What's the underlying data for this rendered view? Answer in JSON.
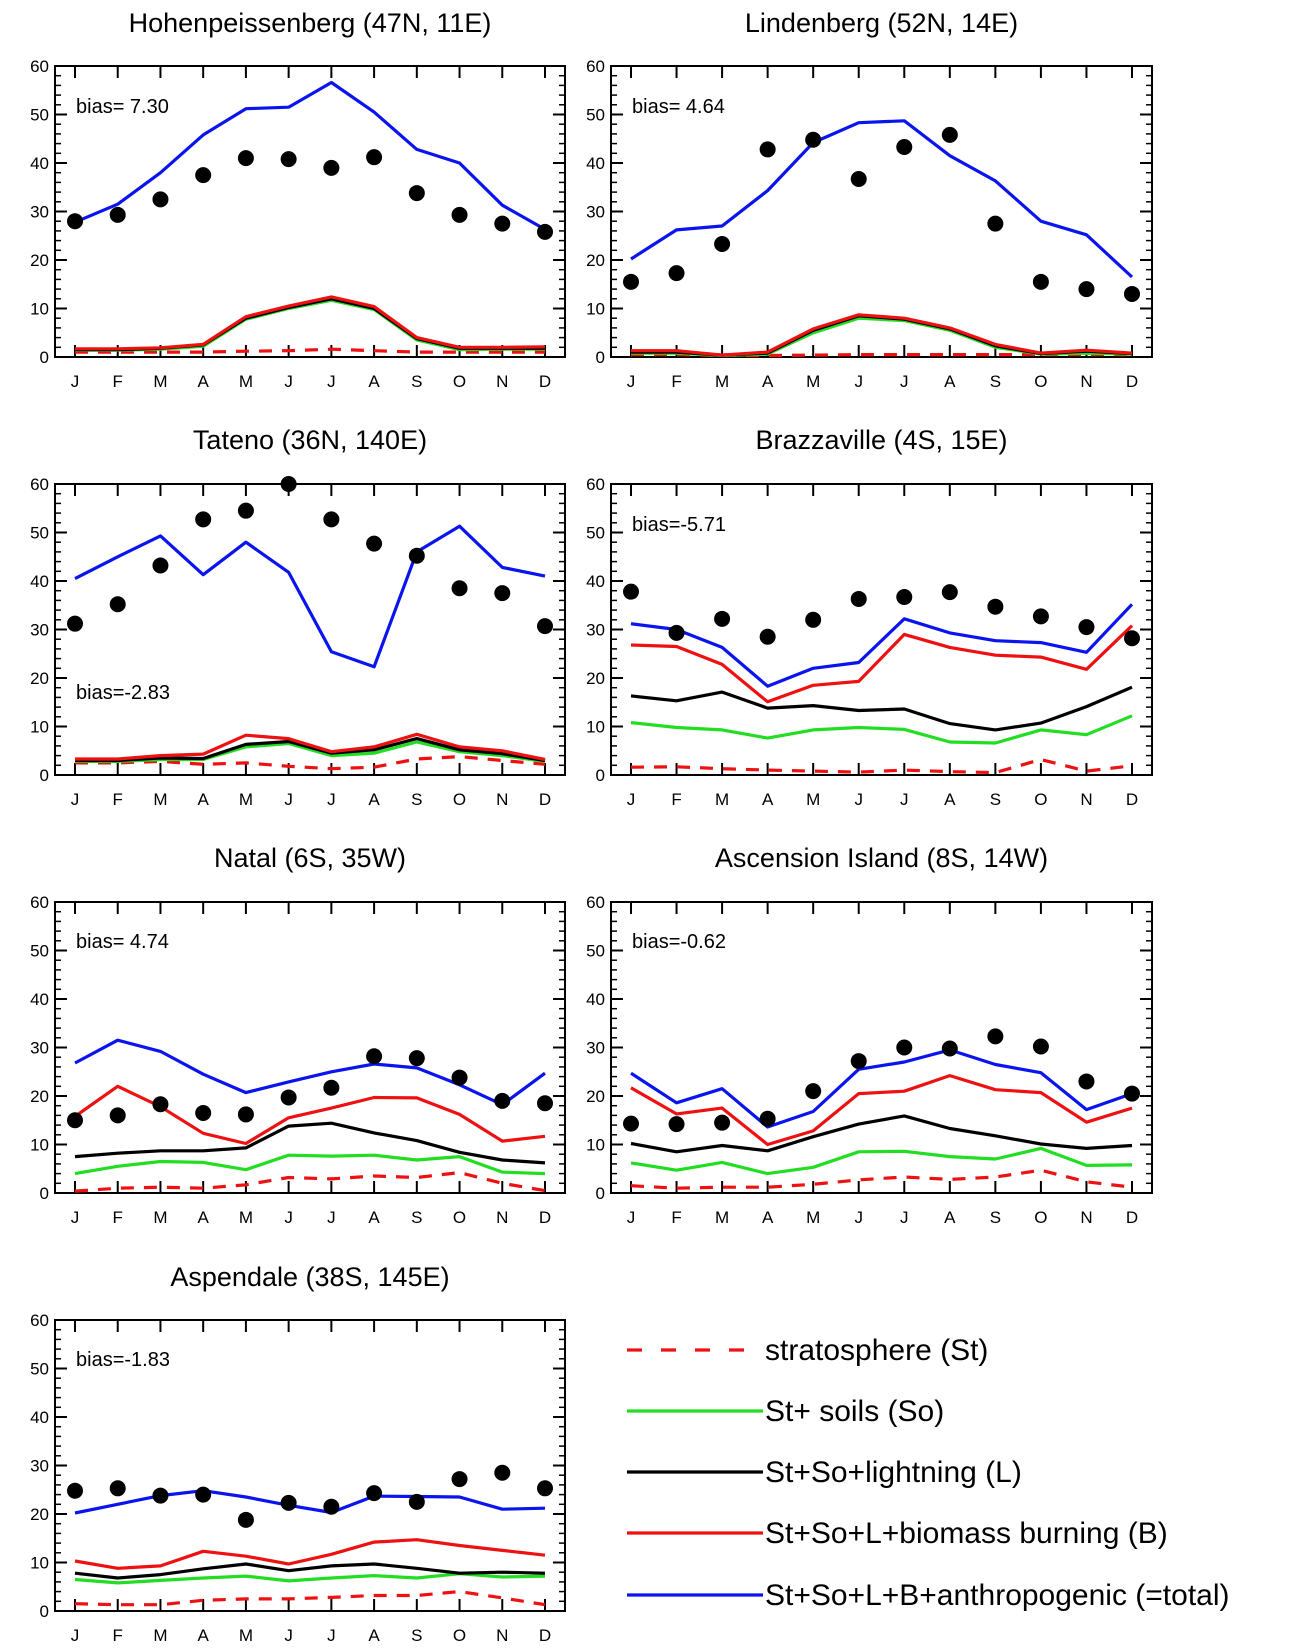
{
  "months": [
    "J",
    "F",
    "M",
    "A",
    "M",
    "J",
    "J",
    "A",
    "S",
    "O",
    "N",
    "D"
  ],
  "yticks": [
    0,
    10,
    20,
    30,
    40,
    50,
    60
  ],
  "colors": {
    "st": "#ee1111",
    "so": "#22dd22",
    "l": "#000000",
    "b": "#ee1111",
    "total": "#0a14ee",
    "obs": "#000000"
  },
  "legend": [
    {
      "key": "st",
      "label": "stratosphere (St)",
      "dashed": true
    },
    {
      "key": "so",
      "label": "St+ soils (So)",
      "dashed": false
    },
    {
      "key": "l",
      "label": "St+So+lightning (L)",
      "dashed": false
    },
    {
      "key": "b",
      "label": "St+So+L+biomass burning (B)",
      "dashed": false
    },
    {
      "key": "total",
      "label": "St+So+L+B+anthropogenic (=total)",
      "dashed": false
    }
  ],
  "chart_data": [
    {
      "type": "line",
      "title": "Hohenpeissenberg (47N, 11E)",
      "bias": "bias= 7.30",
      "ylim": [
        0,
        60
      ],
      "categories": [
        "J",
        "F",
        "M",
        "A",
        "M",
        "J",
        "J",
        "A",
        "S",
        "O",
        "N",
        "D"
      ],
      "observations": [
        28.0,
        29.3,
        32.5,
        37.5,
        41.0,
        40.8,
        39.0,
        41.2,
        33.8,
        29.3,
        27.5,
        25.8
      ],
      "series": [
        {
          "key": "st",
          "values": [
            1.0,
            1.0,
            1.0,
            1.0,
            1.2,
            1.3,
            1.6,
            1.3,
            1.0,
            1.0,
            1.0,
            1.0
          ]
        },
        {
          "key": "so",
          "values": [
            1.4,
            1.4,
            1.6,
            2.2,
            7.8,
            10.0,
            11.7,
            9.8,
            3.5,
            1.5,
            1.6,
            1.6
          ]
        },
        {
          "key": "l",
          "values": [
            1.5,
            1.5,
            1.8,
            2.5,
            8.0,
            10.2,
            12.0,
            10.0,
            3.8,
            1.8,
            1.8,
            1.8
          ]
        },
        {
          "key": "b",
          "values": [
            1.7,
            1.7,
            1.9,
            2.6,
            8.3,
            10.5,
            12.4,
            10.4,
            4.0,
            2.0,
            2.0,
            2.1
          ]
        },
        {
          "key": "total",
          "values": [
            27.8,
            31.5,
            38.0,
            45.8,
            51.2,
            51.5,
            56.6,
            50.5,
            42.8,
            40.0,
            31.3,
            26.3
          ]
        }
      ]
    },
    {
      "type": "line",
      "title": "Lindenberg (52N, 14E)",
      "bias": "bias= 4.64",
      "ylim": [
        0,
        60
      ],
      "categories": [
        "J",
        "F",
        "M",
        "A",
        "M",
        "J",
        "J",
        "A",
        "S",
        "O",
        "N",
        "D"
      ],
      "observations": [
        15.5,
        17.3,
        23.3,
        42.8,
        44.8,
        36.7,
        43.3,
        45.8,
        27.5,
        15.5,
        14.0,
        13.0
      ],
      "series": [
        {
          "key": "st",
          "values": [
            0.5,
            0.5,
            0.3,
            0.3,
            0.4,
            0.5,
            0.5,
            0.5,
            0.5,
            0.5,
            0.5,
            0.5
          ]
        },
        {
          "key": "so",
          "values": [
            0.8,
            0.8,
            0.3,
            0.6,
            5.0,
            8.0,
            7.5,
            5.5,
            2.0,
            0.6,
            0.8,
            0.6
          ]
        },
        {
          "key": "l",
          "values": [
            1.0,
            1.0,
            0.4,
            0.8,
            5.5,
            8.5,
            7.8,
            5.8,
            2.3,
            0.7,
            1.2,
            0.7
          ]
        },
        {
          "key": "b",
          "values": [
            1.3,
            1.3,
            0.4,
            1.0,
            5.8,
            8.7,
            8.0,
            6.0,
            2.6,
            0.8,
            1.4,
            0.8
          ]
        },
        {
          "key": "total",
          "values": [
            20.2,
            26.2,
            27.0,
            34.3,
            44.2,
            48.3,
            48.7,
            41.5,
            36.3,
            28.0,
            25.2,
            16.5
          ]
        }
      ]
    },
    {
      "type": "line",
      "title": "Tateno (36N, 140E)",
      "bias": "bias=-2.83",
      "ylim": [
        0,
        60
      ],
      "categories": [
        "J",
        "F",
        "M",
        "A",
        "M",
        "J",
        "J",
        "A",
        "S",
        "O",
        "N",
        "D"
      ],
      "observations": [
        31.2,
        35.2,
        43.2,
        52.7,
        54.5,
        60.0,
        52.7,
        47.7,
        45.2,
        38.5,
        37.5,
        30.7
      ],
      "series": [
        {
          "key": "st",
          "values": [
            2.5,
            2.5,
            2.8,
            2.2,
            2.5,
            1.8,
            1.3,
            1.6,
            3.3,
            3.8,
            3.0,
            2.2
          ]
        },
        {
          "key": "so",
          "values": [
            2.8,
            2.8,
            3.2,
            3.2,
            5.8,
            6.5,
            4.0,
            4.5,
            6.8,
            4.8,
            4.0,
            2.8
          ]
        },
        {
          "key": "l",
          "values": [
            3.0,
            3.0,
            3.5,
            3.4,
            6.3,
            6.9,
            4.5,
            5.2,
            7.5,
            5.2,
            4.4,
            3.0
          ]
        },
        {
          "key": "b",
          "values": [
            3.3,
            3.3,
            4.0,
            4.3,
            8.2,
            7.5,
            4.8,
            5.8,
            8.4,
            5.8,
            5.0,
            3.2
          ]
        },
        {
          "key": "total",
          "values": [
            40.5,
            45.0,
            49.3,
            41.3,
            48.0,
            41.8,
            25.4,
            22.3,
            46.0,
            51.3,
            42.8,
            41.0
          ]
        }
      ]
    },
    {
      "type": "line",
      "title": "Brazzaville (4S, 15E)",
      "bias": "bias=-5.71",
      "ylim": [
        0,
        60
      ],
      "categories": [
        "J",
        "F",
        "M",
        "A",
        "M",
        "J",
        "J",
        "A",
        "S",
        "O",
        "N",
        "D"
      ],
      "observations": [
        37.8,
        29.3,
        32.2,
        28.5,
        32.0,
        36.3,
        36.7,
        37.7,
        34.7,
        32.7,
        30.5,
        28.2
      ],
      "series": [
        {
          "key": "st",
          "values": [
            1.6,
            1.7,
            1.3,
            1.0,
            0.8,
            0.6,
            1.0,
            0.7,
            0.5,
            3.2,
            0.8,
            1.9
          ]
        },
        {
          "key": "so",
          "values": [
            10.8,
            9.8,
            9.3,
            7.6,
            9.3,
            9.8,
            9.4,
            6.8,
            6.6,
            9.3,
            8.3,
            12.2
          ]
        },
        {
          "key": "l",
          "values": [
            16.3,
            15.3,
            17.1,
            13.8,
            14.3,
            13.3,
            13.6,
            10.6,
            9.3,
            10.7,
            14.1,
            18.1
          ]
        },
        {
          "key": "b",
          "values": [
            26.8,
            26.5,
            22.8,
            15.1,
            18.5,
            19.3,
            29.0,
            26.3,
            24.7,
            24.3,
            21.8,
            30.8
          ]
        },
        {
          "key": "total",
          "values": [
            31.2,
            30.0,
            26.3,
            18.3,
            22.0,
            23.2,
            32.2,
            29.3,
            27.7,
            27.3,
            25.3,
            35.2
          ]
        }
      ]
    },
    {
      "type": "line",
      "title": "Natal (6S, 35W)",
      "bias": "bias= 4.74",
      "ylim": [
        0,
        60
      ],
      "categories": [
        "J",
        "F",
        "M",
        "A",
        "M",
        "J",
        "J",
        "A",
        "S",
        "O",
        "N",
        "D"
      ],
      "observations": [
        15.0,
        16.0,
        18.3,
        16.5,
        16.2,
        19.7,
        21.7,
        28.2,
        27.8,
        23.8,
        19.0,
        18.5
      ],
      "series": [
        {
          "key": "st",
          "values": [
            0.4,
            1.0,
            1.2,
            1.0,
            1.7,
            3.2,
            2.9,
            3.5,
            3.2,
            4.2,
            2.0,
            0.5
          ]
        },
        {
          "key": "so",
          "values": [
            4.0,
            5.5,
            6.5,
            6.3,
            4.8,
            7.8,
            7.6,
            7.8,
            6.8,
            7.5,
            4.3,
            4.0
          ]
        },
        {
          "key": "l",
          "values": [
            7.5,
            8.2,
            8.7,
            8.7,
            9.3,
            13.8,
            14.4,
            12.4,
            10.8,
            8.4,
            6.8,
            6.2
          ]
        },
        {
          "key": "b",
          "values": [
            15.8,
            22.0,
            17.8,
            12.3,
            10.2,
            15.5,
            17.5,
            19.7,
            19.6,
            16.2,
            10.7,
            11.7
          ]
        },
        {
          "key": "total",
          "values": [
            26.8,
            31.5,
            29.2,
            24.5,
            20.7,
            22.9,
            25.0,
            26.6,
            25.8,
            22.3,
            18.2,
            24.7
          ]
        }
      ]
    },
    {
      "type": "line",
      "title": "Ascension Island (8S, 14W)",
      "bias": "bias=-0.62",
      "ylim": [
        0,
        60
      ],
      "categories": [
        "J",
        "F",
        "M",
        "A",
        "M",
        "J",
        "J",
        "A",
        "S",
        "O",
        "N",
        "D"
      ],
      "observations": [
        14.3,
        14.2,
        14.5,
        15.3,
        21.0,
        27.2,
        30.0,
        29.8,
        32.3,
        30.2,
        23.0,
        20.5
      ],
      "series": [
        {
          "key": "st",
          "values": [
            1.5,
            1.0,
            1.2,
            1.2,
            1.8,
            2.7,
            3.3,
            2.8,
            3.3,
            4.7,
            2.3,
            1.2
          ]
        },
        {
          "key": "so",
          "values": [
            6.2,
            4.7,
            6.3,
            4.0,
            5.3,
            8.5,
            8.6,
            7.5,
            7.0,
            9.2,
            5.7,
            5.8
          ]
        },
        {
          "key": "l",
          "values": [
            10.2,
            8.5,
            9.8,
            8.7,
            11.6,
            14.2,
            15.9,
            13.3,
            11.8,
            10.1,
            9.2,
            9.8
          ]
        },
        {
          "key": "b",
          "values": [
            21.7,
            16.3,
            17.5,
            10.0,
            12.8,
            20.5,
            21.0,
            24.2,
            21.3,
            20.7,
            14.6,
            17.5
          ]
        },
        {
          "key": "total",
          "values": [
            24.7,
            18.6,
            21.5,
            13.6,
            16.8,
            25.5,
            27.0,
            29.5,
            26.5,
            24.8,
            17.2,
            20.5
          ]
        }
      ]
    },
    {
      "type": "line",
      "title": "Aspendale (38S, 145E)",
      "bias": "bias=-1.83",
      "ylim": [
        0,
        60
      ],
      "categories": [
        "J",
        "F",
        "M",
        "A",
        "M",
        "J",
        "J",
        "A",
        "S",
        "O",
        "N",
        "D"
      ],
      "observations": [
        24.8,
        25.3,
        23.8,
        24.0,
        18.8,
        22.3,
        21.5,
        24.3,
        22.5,
        27.2,
        28.5,
        25.3
      ],
      "series": [
        {
          "key": "st",
          "values": [
            1.5,
            1.3,
            1.3,
            2.2,
            2.5,
            2.5,
            2.8,
            3.2,
            3.2,
            4.0,
            2.7,
            1.3
          ]
        },
        {
          "key": "so",
          "values": [
            6.5,
            5.8,
            6.3,
            6.8,
            7.2,
            6.2,
            6.8,
            7.3,
            6.8,
            7.7,
            7.0,
            7.2
          ]
        },
        {
          "key": "l",
          "values": [
            7.8,
            6.8,
            7.5,
            8.7,
            9.7,
            8.3,
            9.3,
            9.7,
            8.8,
            7.8,
            8.0,
            7.8
          ]
        },
        {
          "key": "b",
          "values": [
            10.3,
            8.8,
            9.3,
            12.3,
            11.3,
            9.7,
            11.7,
            14.2,
            14.7,
            13.5,
            12.5,
            11.5
          ]
        },
        {
          "key": "total",
          "values": [
            20.2,
            22.0,
            23.8,
            24.8,
            23.5,
            21.8,
            20.3,
            23.7,
            23.6,
            23.5,
            21.0,
            21.2
          ]
        }
      ]
    }
  ]
}
